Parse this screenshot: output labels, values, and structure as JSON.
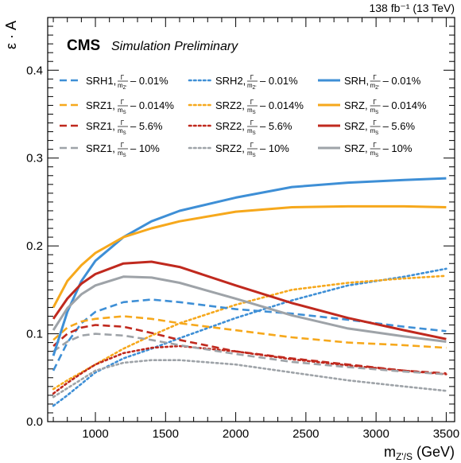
{
  "chart_data": {
    "type": "line",
    "lumi_label": "138 fb⁻¹ (13 TeV)",
    "cms_label": "CMS",
    "cms_sublabel": "Simulation Preliminary",
    "xlabel_main": "m",
    "xlabel_sub": "Z'/S",
    "xlabel_unit": " (GeV)",
    "ylabel": "ε · A",
    "xlim": [
      660,
      3560
    ],
    "ylim": [
      0.0,
      0.46
    ],
    "x_ticks": [
      1000,
      1500,
      2000,
      2500,
      3000,
      3500
    ],
    "y_ticks": [
      0.0,
      0.1,
      0.2,
      0.3,
      0.4
    ],
    "y_tick_labels": [
      "0.0",
      "0.1",
      "0.2",
      "0.3",
      "0.4"
    ],
    "colors": {
      "blue": "#3e8fd6",
      "orange": "#f6a81c",
      "red": "#c0291e",
      "gray": "#9ea3a8"
    },
    "legend": [
      {
        "region": "SRH1,",
        "frac_num": "Γ",
        "frac_den": "m",
        "frac_sub": "Z'",
        "value": "– 0.01%",
        "color": "blue",
        "style": "dash"
      },
      {
        "region": "SRH2,",
        "frac_num": "Γ",
        "frac_den": "m",
        "frac_sub": "Z'",
        "value": "– 0.01%",
        "color": "blue",
        "style": "dot"
      },
      {
        "region": "SRH,",
        "frac_num": "Γ",
        "frac_den": "m",
        "frac_sub": "Z'",
        "value": "– 0.01%",
        "color": "blue",
        "style": "solid"
      },
      {
        "region": "SRZ1,",
        "frac_num": "Γ",
        "frac_den": "m",
        "frac_sub": "S",
        "value": "– 0.014%",
        "color": "orange",
        "style": "dash"
      },
      {
        "region": "SRZ2,",
        "frac_num": "Γ",
        "frac_den": "m",
        "frac_sub": "S",
        "value": "– 0.014%",
        "color": "orange",
        "style": "dot"
      },
      {
        "region": "SRZ,",
        "frac_num": "Γ",
        "frac_den": "m",
        "frac_sub": "S",
        "value": "– 0.014%",
        "color": "orange",
        "style": "solid"
      },
      {
        "region": "SRZ1,",
        "frac_num": "Γ",
        "frac_den": "m",
        "frac_sub": "S",
        "value": "– 5.6%",
        "color": "red",
        "style": "dash"
      },
      {
        "region": "SRZ2,",
        "frac_num": "Γ",
        "frac_den": "m",
        "frac_sub": "S",
        "value": "– 5.6%",
        "color": "red",
        "style": "dot"
      },
      {
        "region": "SRZ,",
        "frac_num": "Γ",
        "frac_den": "m",
        "frac_sub": "S",
        "value": "– 5.6%",
        "color": "red",
        "style": "solid"
      },
      {
        "region": "SRZ1,",
        "frac_num": "Γ",
        "frac_den": "m",
        "frac_sub": "S",
        "value": "– 10%",
        "color": "gray",
        "style": "dash"
      },
      {
        "region": "SRZ2,",
        "frac_num": "Γ",
        "frac_den": "m",
        "frac_sub": "S",
        "value": "– 10%",
        "color": "gray",
        "style": "dot"
      },
      {
        "region": "SRZ,",
        "frac_num": "Γ",
        "frac_den": "m",
        "frac_sub": "S",
        "value": "– 10%",
        "color": "gray",
        "style": "solid"
      }
    ],
    "series": [
      {
        "color": "blue",
        "style": "solid",
        "x": [
          700,
          800,
          900,
          1000,
          1200,
          1400,
          1600,
          2000,
          2400,
          2800,
          3200,
          3500
        ],
        "y": [
          0.075,
          0.125,
          0.16,
          0.183,
          0.21,
          0.228,
          0.24,
          0.255,
          0.267,
          0.272,
          0.275,
          0.277
        ]
      },
      {
        "color": "blue",
        "style": "dash",
        "x": [
          700,
          800,
          900,
          1000,
          1200,
          1400,
          1600,
          2000,
          2400,
          2800,
          3200,
          3500
        ],
        "y": [
          0.058,
          0.09,
          0.112,
          0.125,
          0.136,
          0.139,
          0.136,
          0.128,
          0.123,
          0.116,
          0.108,
          0.103
        ]
      },
      {
        "color": "blue",
        "style": "dot",
        "x": [
          700,
          800,
          900,
          1000,
          1200,
          1400,
          1600,
          2000,
          2400,
          2800,
          3200,
          3500
        ],
        "y": [
          0.018,
          0.03,
          0.043,
          0.056,
          0.072,
          0.083,
          0.095,
          0.118,
          0.138,
          0.155,
          0.165,
          0.174
        ]
      },
      {
        "color": "orange",
        "style": "solid",
        "x": [
          700,
          800,
          900,
          1000,
          1200,
          1400,
          1600,
          2000,
          2400,
          2800,
          3200,
          3500
        ],
        "y": [
          0.13,
          0.16,
          0.178,
          0.192,
          0.21,
          0.22,
          0.228,
          0.239,
          0.244,
          0.245,
          0.245,
          0.244
        ]
      },
      {
        "color": "orange",
        "style": "dash",
        "x": [
          700,
          800,
          900,
          1000,
          1200,
          1400,
          1600,
          2000,
          2400,
          2800,
          3200,
          3500
        ],
        "y": [
          0.093,
          0.107,
          0.114,
          0.117,
          0.12,
          0.117,
          0.112,
          0.104,
          0.096,
          0.09,
          0.087,
          0.084
        ]
      },
      {
        "color": "orange",
        "style": "dot",
        "x": [
          700,
          800,
          900,
          1000,
          1200,
          1400,
          1600,
          2000,
          2400,
          2800,
          3200,
          3500
        ],
        "y": [
          0.037,
          0.047,
          0.056,
          0.065,
          0.083,
          0.098,
          0.112,
          0.133,
          0.15,
          0.158,
          0.163,
          0.166
        ]
      },
      {
        "color": "red",
        "style": "solid",
        "x": [
          700,
          800,
          900,
          1000,
          1200,
          1400,
          1600,
          2000,
          2400,
          2800,
          3200,
          3500
        ],
        "y": [
          0.117,
          0.14,
          0.157,
          0.168,
          0.18,
          0.182,
          0.176,
          0.155,
          0.135,
          0.118,
          0.104,
          0.094
        ]
      },
      {
        "color": "red",
        "style": "dash",
        "x": [
          700,
          800,
          900,
          1000,
          1200,
          1400,
          1600,
          2000,
          2400,
          2800,
          3200,
          3500
        ],
        "y": [
          0.086,
          0.1,
          0.107,
          0.11,
          0.108,
          0.101,
          0.093,
          0.08,
          0.072,
          0.065,
          0.058,
          0.055
        ]
      },
      {
        "color": "red",
        "style": "dot",
        "x": [
          700,
          800,
          900,
          1000,
          1200,
          1400,
          1600,
          2000,
          2400,
          2800,
          3200,
          3500
        ],
        "y": [
          0.032,
          0.044,
          0.055,
          0.065,
          0.078,
          0.084,
          0.086,
          0.08,
          0.071,
          0.064,
          0.058,
          0.054
        ]
      },
      {
        "color": "gray",
        "style": "solid",
        "x": [
          700,
          800,
          900,
          1000,
          1200,
          1400,
          1600,
          2000,
          2400,
          2800,
          3200,
          3500
        ],
        "y": [
          0.104,
          0.129,
          0.145,
          0.155,
          0.165,
          0.164,
          0.158,
          0.14,
          0.121,
          0.106,
          0.097,
          0.091
        ]
      },
      {
        "color": "gray",
        "style": "dash",
        "x": [
          700,
          800,
          900,
          1000,
          1200,
          1400,
          1600,
          2000,
          2400,
          2800,
          3200,
          3500
        ],
        "y": [
          0.08,
          0.091,
          0.098,
          0.1,
          0.098,
          0.093,
          0.087,
          0.077,
          0.068,
          0.062,
          0.057,
          0.054
        ]
      },
      {
        "color": "gray",
        "style": "dot",
        "x": [
          700,
          800,
          900,
          1000,
          1200,
          1400,
          1600,
          2000,
          2400,
          2800,
          3200,
          3500
        ],
        "y": [
          0.028,
          0.038,
          0.048,
          0.058,
          0.067,
          0.07,
          0.07,
          0.065,
          0.056,
          0.047,
          0.04,
          0.035
        ]
      }
    ]
  }
}
